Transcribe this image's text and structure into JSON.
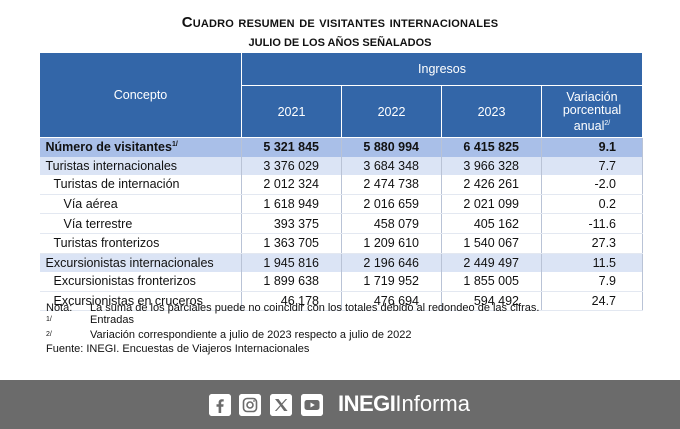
{
  "header": {
    "title": "Cuadro resumen de visitantes internacionales",
    "subtitle": "JULIO DE LOS AÑOS SEÑALADOS"
  },
  "table": {
    "concept_label": "Concepto",
    "group_label": "Ingresos",
    "years": [
      "2021",
      "2022",
      "2023"
    ],
    "variation_label_lines": [
      "Variación",
      "porcentual",
      "anual"
    ],
    "variation_note_ref": "2/",
    "rows": [
      {
        "label": "Número de visitantes",
        "ref": "1/",
        "v2021": "5 321 845",
        "v2022": "5 880 994",
        "v2023": "6 415 825",
        "var": "9.1"
      },
      {
        "label": "Turistas internacionales",
        "ref": "",
        "v2021": "3 376 029",
        "v2022": "3 684 348",
        "v2023": "3 966 328",
        "var": "7.7"
      },
      {
        "label": "Turistas de internación",
        "ref": "",
        "v2021": "2 012 324",
        "v2022": "2 474 738",
        "v2023": "2 426 261",
        "var": "-2.0"
      },
      {
        "label": "Vía aérea",
        "ref": "",
        "v2021": "1 618 949",
        "v2022": "2 016 659",
        "v2023": "2 021 099",
        "var": "0.2"
      },
      {
        "label": "Vía terrestre",
        "ref": "",
        "v2021": "393 375",
        "v2022": "458 079",
        "v2023": "405 162",
        "var": "-11.6"
      },
      {
        "label": "Turistas fronterizos",
        "ref": "",
        "v2021": "1 363 705",
        "v2022": "1 209 610",
        "v2023": "1 540 067",
        "var": "27.3"
      },
      {
        "label": "Excursionistas internacionales",
        "ref": "",
        "v2021": "1 945 816",
        "v2022": "2 196 646",
        "v2023": "2 449 497",
        "var": "11.5"
      },
      {
        "label": "Excursionistas fronterizos",
        "ref": "",
        "v2021": "1 899 638",
        "v2022": "1 719 952",
        "v2023": "1 855 005",
        "var": "7.9"
      },
      {
        "label": "Excursionistas en cruceros",
        "ref": "",
        "v2021": "46 178",
        "v2022": "476 694",
        "v2023": "594 492",
        "var": "24.7"
      }
    ]
  },
  "notes": {
    "nota_key": "Nota:",
    "nota_text": "La suma de los parciales puede no coincidir con los totales debido al redondeo de las cifras.",
    "n1_key": "1/",
    "n1_text": "Entradas",
    "n2_key": "2/",
    "n2_text": "Variación correspondiente a julio de 2023 respecto a julio de 2022",
    "source": "Fuente: INEGI. Encuestas de Viajeros Internacionales"
  },
  "footer": {
    "brand_bold": "INEGI",
    "brand_light": "Informa",
    "icons": [
      "facebook-icon",
      "instagram-icon",
      "x-icon",
      "youtube-icon"
    ]
  },
  "colors": {
    "header_blue": "#3366a8",
    "total_row": "#a9bfe8",
    "shaded_row": "#dbe4f5",
    "footer_bg": "#6b6b6b"
  }
}
